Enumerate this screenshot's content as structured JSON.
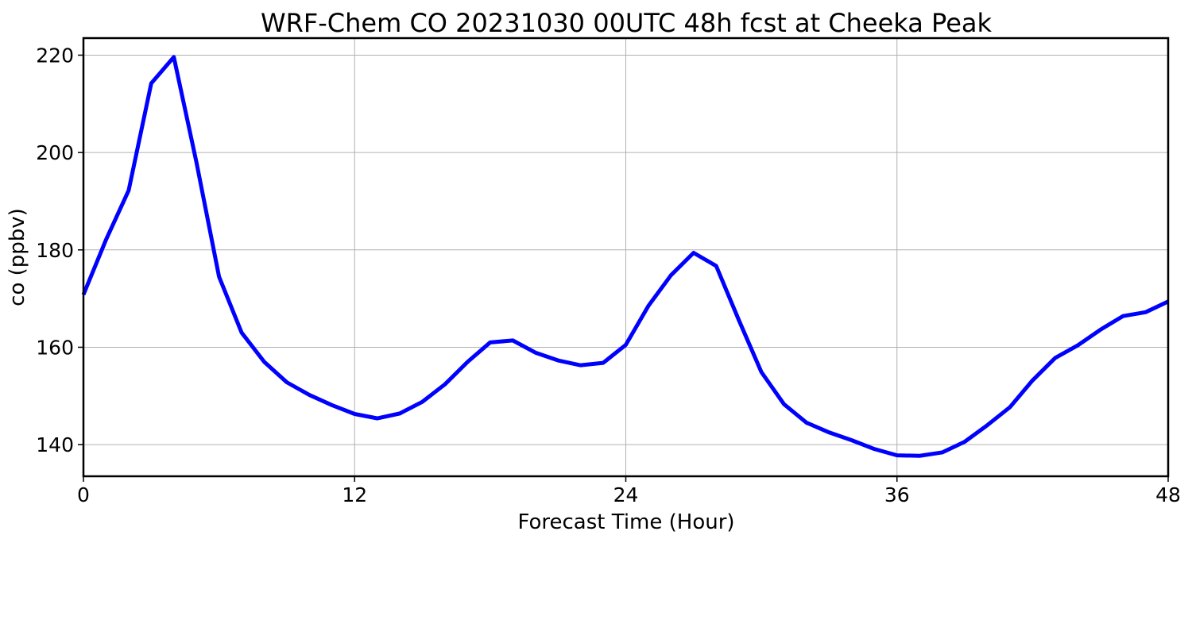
{
  "chart_data": {
    "type": "line",
    "title": "WRF-Chem CO  20231030 00UTC 48h fcst at Cheeka Peak",
    "xlabel": "Forecast Time (Hour)",
    "ylabel": "co  (ppbv)",
    "xlim": [
      0,
      48
    ],
    "ylim": [
      133.5,
      223.5
    ],
    "xticks": [
      0,
      12,
      24,
      36,
      48
    ],
    "yticks": [
      140,
      160,
      180,
      200,
      220
    ],
    "grid": true,
    "line_color": "#0000ff",
    "x": [
      0,
      1,
      2,
      3,
      4,
      5,
      6,
      7,
      8,
      9,
      10,
      11,
      12,
      13,
      14,
      15,
      16,
      17,
      18,
      19,
      20,
      21,
      22,
      23,
      24,
      25,
      26,
      27,
      28,
      29,
      30,
      31,
      32,
      33,
      34,
      35,
      36,
      37,
      38,
      39,
      40,
      41,
      42,
      43,
      44,
      45,
      46,
      47,
      48
    ],
    "series": [
      {
        "values": [
          170.8,
          182.1,
          192.2,
          214.2,
          219.6,
          198.0,
          174.5,
          163.0,
          157.0,
          152.8,
          150.2,
          148.1,
          146.3,
          145.4,
          146.4,
          148.8,
          152.4,
          157.0,
          161.0,
          161.4,
          158.9,
          157.3,
          156.3,
          156.8,
          160.5,
          168.5,
          174.8,
          179.4,
          176.7,
          165.6,
          154.9,
          148.3,
          144.5,
          142.5,
          140.9,
          139.1,
          137.8,
          137.7,
          138.4,
          140.6,
          144.0,
          147.7,
          153.2,
          157.8,
          160.4,
          163.6,
          166.4,
          167.2,
          169.4
        ]
      }
    ]
  }
}
